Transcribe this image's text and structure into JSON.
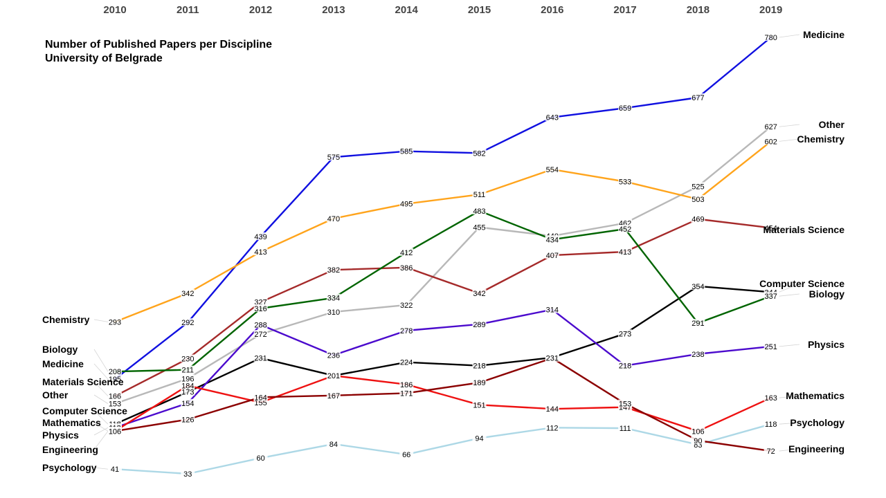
{
  "chart_data": {
    "type": "line",
    "title": "Number of Published Papers per Discipline",
    "subtitle": "University of Belgrade",
    "xlabel": "",
    "ylabel": "",
    "x": [
      "2010",
      "2011",
      "2012",
      "2013",
      "2014",
      "2015",
      "2016",
      "2017",
      "2018",
      "2019"
    ],
    "ylim": [
      33,
      780
    ],
    "grid": false,
    "legend": "none (series labeled at line ends)",
    "series": [
      {
        "name": "Medicine",
        "color": "#1010e0",
        "values": [
          195,
          292,
          439,
          575,
          585,
          582,
          643,
          659,
          677,
          780
        ]
      },
      {
        "name": "Other",
        "color": "#b8b8b8",
        "values": [
          153,
          196,
          272,
          310,
          322,
          455,
          440,
          462,
          525,
          627
        ]
      },
      {
        "name": "Chemistry",
        "color": "#ffa41c",
        "values": [
          293,
          342,
          413,
          470,
          495,
          511,
          554,
          533,
          503,
          602
        ]
      },
      {
        "name": "Materials Science",
        "color": "#a52a2a",
        "values": [
          166,
          230,
          327,
          382,
          386,
          342,
          407,
          413,
          469,
          454
        ]
      },
      {
        "name": "Computer Science",
        "color": "#000000",
        "values": [
          118,
          173,
          231,
          201,
          224,
          218,
          232,
          273,
          354,
          344
        ]
      },
      {
        "name": "Biology",
        "color": "#006400",
        "values": [
          208,
          211,
          316,
          334,
          412,
          483,
          434,
          452,
          291,
          337
        ]
      },
      {
        "name": "Physics",
        "color": "#4b0acd",
        "values": [
          112,
          154,
          288,
          236,
          278,
          289,
          314,
          218,
          238,
          251
        ]
      },
      {
        "name": "Mathematics",
        "color": "#ee1111",
        "values": [
          106,
          184,
          155,
          201,
          186,
          151,
          144,
          147,
          106,
          163
        ]
      },
      {
        "name": "Psychology",
        "color": "#add8e6",
        "values": [
          41,
          33,
          60,
          84,
          66,
          94,
          112,
          111,
          83,
          118
        ]
      },
      {
        "name": "Engineering",
        "color": "#8b0000",
        "values": [
          106,
          126,
          164,
          167,
          171,
          189,
          231,
          153,
          90,
          72
        ]
      }
    ],
    "point_labels": [
      {
        "series": "Medicine",
        "labels": [
          "195",
          "292",
          "439",
          "575",
          "585",
          "582",
          "643",
          "659",
          "677",
          "780"
        ]
      },
      {
        "series": "Other",
        "labels": [
          "153",
          "196",
          "272",
          "310",
          "322",
          "455",
          "440",
          "462",
          "525",
          "627"
        ]
      },
      {
        "series": "Chemistry",
        "labels": [
          "293",
          "342",
          "413",
          "470",
          "495",
          "511",
          "554",
          "533",
          "503",
          "602"
        ]
      },
      {
        "series": "Materials Science",
        "labels": [
          "166",
          "230",
          "327",
          "382",
          "386",
          "342",
          "407",
          "413",
          "469",
          "454"
        ]
      },
      {
        "series": "Computer Science",
        "labels": [
          "118",
          "173",
          "231",
          "201",
          "224",
          "218",
          "232",
          "273",
          "354",
          "344"
        ]
      },
      {
        "series": "Biology",
        "labels": [
          "208",
          "211",
          "316",
          "334",
          "412",
          "483",
          "434",
          "452",
          "291",
          "337"
        ]
      },
      {
        "series": "Physics",
        "labels": [
          "112",
          "154",
          "288",
          "236",
          "278",
          "289",
          "314",
          "218",
          "238",
          "251"
        ]
      },
      {
        "series": "Mathematics",
        "labels": [
          "106",
          "184",
          "155",
          "201",
          "186",
          "151",
          "144",
          "147",
          "106",
          "163"
        ]
      },
      {
        "series": "Psychology",
        "labels": [
          "41",
          "33",
          "60",
          "84",
          "66",
          "94",
          "112",
          "111",
          "83",
          "118"
        ]
      },
      {
        "series": "Engineering",
        "labels": [
          "106",
          "126",
          "164",
          "167",
          "171",
          "189",
          "231",
          "153",
          "90",
          "72"
        ]
      }
    ]
  }
}
